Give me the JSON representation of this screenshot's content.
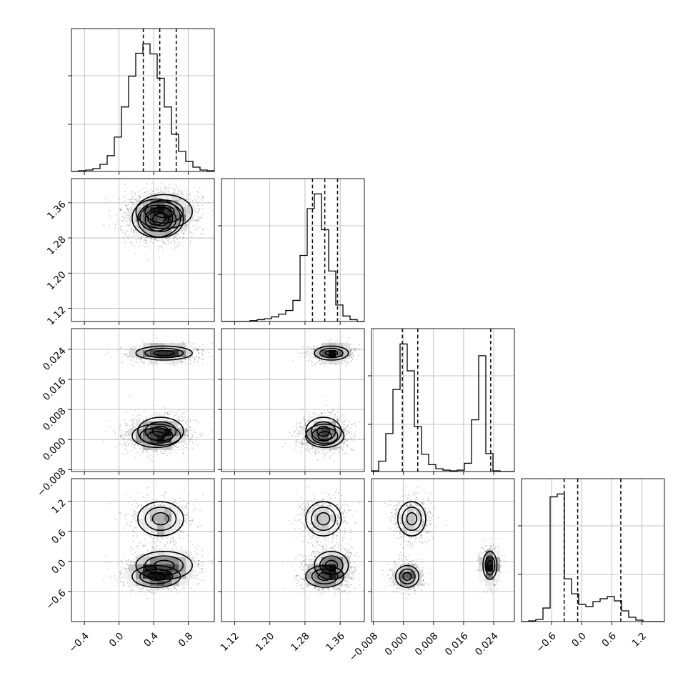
{
  "chart_data": {
    "type": "corner",
    "parameters": [
      {
        "range": [
          -0.55,
          1.1
        ],
        "ticks": [
          -0.4,
          0.0,
          0.4,
          0.8
        ],
        "tick_labels": [
          "−0.4",
          "0.0",
          "0.4",
          "0.8"
        ],
        "quantiles": [
          0.28,
          0.47,
          0.66
        ]
      },
      {
        "range": [
          1.09,
          1.415
        ],
        "ticks": [
          1.12,
          1.2,
          1.28,
          1.36
        ],
        "tick_labels": [
          "1.12",
          "1.20",
          "1.28",
          "1.36"
        ],
        "quantiles": [
          1.297,
          1.325,
          1.354
        ]
      },
      {
        "range": [
          -0.0085,
          0.0295
        ],
        "ticks": [
          -0.008,
          0.0,
          0.008,
          0.016,
          0.024
        ],
        "tick_labels": [
          "−0.008",
          "0.000",
          "0.008",
          "0.016",
          "0.024"
        ],
        "quantiles": [
          -0.0003,
          0.0038,
          0.0232
        ]
      },
      {
        "range": [
          -1.2,
          1.65
        ],
        "ticks": [
          -0.6,
          0.0,
          0.6,
          1.2
        ],
        "tick_labels": [
          "−0.6",
          "0.0",
          "0.6",
          "1.2"
        ],
        "quantiles": [
          -0.35,
          -0.08,
          0.78
        ]
      }
    ],
    "histograms": [
      {
        "edges_start": -0.55,
        "bin_width": 0.0825,
        "counts": [
          0,
          1,
          2,
          4,
          10,
          22,
          48,
          90,
          133,
          165,
          178,
          164,
          130,
          90,
          52,
          28,
          14,
          6,
          2,
          1
        ]
      },
      {
        "edges_start": 1.09,
        "bin_width": 0.01625,
        "counts": [
          0,
          0,
          0,
          0,
          1,
          2,
          3,
          5,
          8,
          12,
          23,
          72,
          123,
          139,
          100,
          55,
          18,
          6,
          2,
          0
        ]
      },
      {
        "edges_start": -0.0085,
        "bin_width": 0.0019,
        "counts": [
          1,
          15,
          55,
          119,
          185,
          146,
          65,
          25,
          10,
          4,
          2,
          1,
          2,
          12,
          75,
          168,
          26,
          1,
          0,
          0
        ]
      },
      {
        "edges_start": -1.2,
        "bin_width": 0.1425,
        "counts": [
          0,
          1,
          3,
          19,
          175,
          179,
          60,
          39,
          24,
          21,
          28,
          32,
          35,
          29,
          15,
          6,
          2,
          0,
          0,
          0
        ]
      }
    ],
    "grid": true,
    "xlabels": [],
    "ylabels": []
  }
}
